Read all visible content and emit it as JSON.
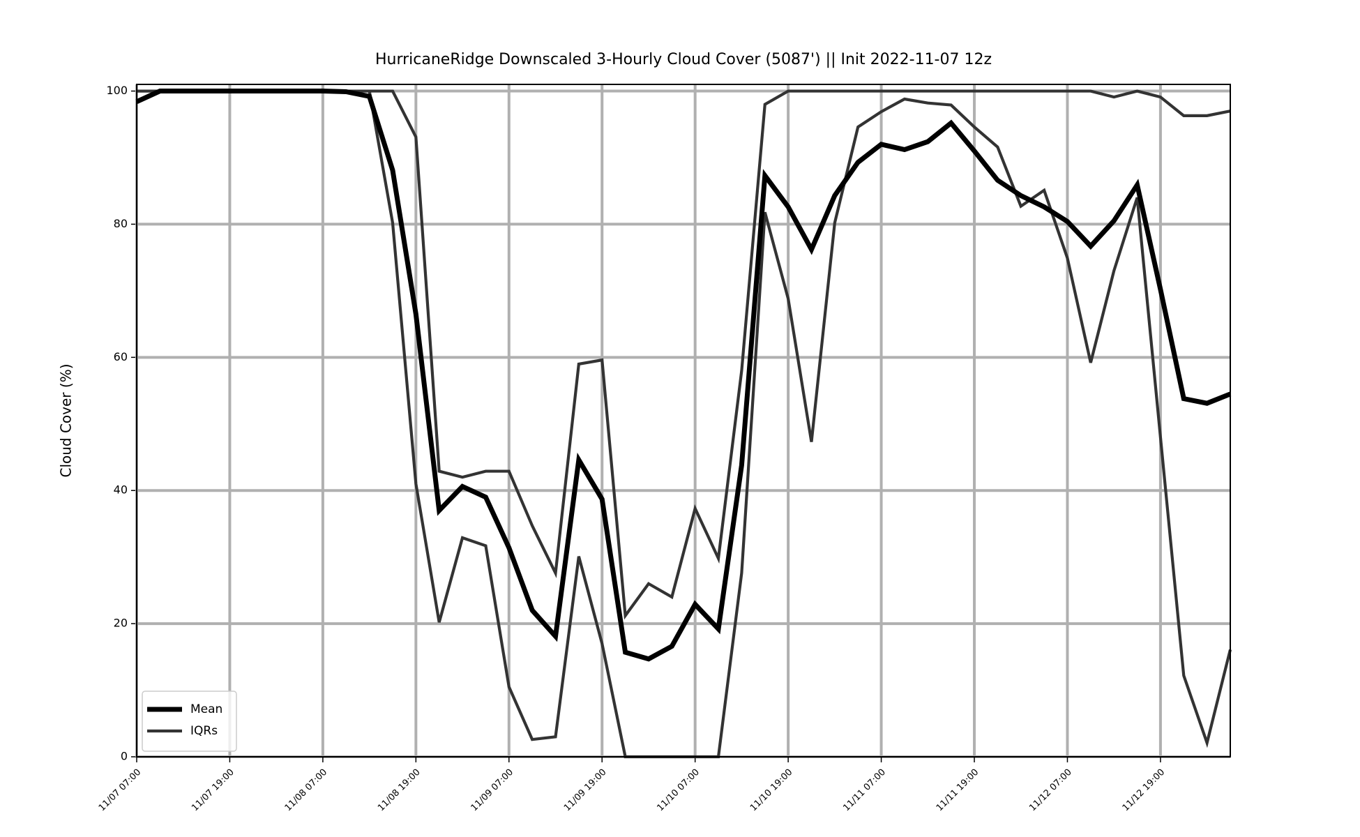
{
  "chart_data": {
    "type": "line",
    "title": "HurricaneRidge Downscaled 3-Hourly Cloud Cover (5087') || Init 2022-11-07 12z",
    "y_label": "Cloud Cover (%)",
    "categories": [
      "11/07 07:00",
      null,
      null,
      null,
      "11/07 19:00",
      null,
      null,
      null,
      "11/08 07:00",
      null,
      null,
      null,
      "11/08 19:00",
      null,
      null,
      null,
      "11/09 07:00",
      null,
      null,
      null,
      "11/09 19:00",
      null,
      null,
      null,
      "11/10 07:00",
      null,
      null,
      null,
      "11/10 19:00",
      null,
      null,
      null,
      "11/11 07:00",
      null,
      null,
      null,
      "11/11 19:00",
      null,
      null,
      null,
      "11/12 07:00",
      null,
      null,
      null,
      "11/12 19:00",
      null,
      null,
      null
    ],
    "series": [
      {
        "name": "Mean",
        "color": "#000000",
        "values": [
          98.4,
          100,
          100,
          100,
          100,
          100,
          100,
          100,
          100,
          99.9,
          99.2,
          88.1,
          66.5,
          37.0,
          40.6,
          39.0,
          31.4,
          22.0,
          18.1,
          44.6,
          38.7,
          15.7,
          14.7,
          16.6,
          22.9,
          19.2,
          43.8,
          87.3,
          82.6,
          76.2,
          84.3,
          89.3,
          92.0,
          91.2,
          92.4,
          95.2,
          91.0,
          86.6,
          84.3,
          82.6,
          80.4,
          76.7,
          80.5,
          85.9,
          70.2,
          53.8,
          53.1,
          54.5
        ]
      },
      {
        "name": "IQRs",
        "color": "#333333",
        "values": [
          100,
          100,
          100,
          100,
          100,
          100,
          100,
          100,
          100,
          100,
          100,
          100,
          93.1,
          42.9,
          42.0,
          42.9,
          42.9,
          34.7,
          27.6,
          59.0,
          59.6,
          21.2,
          26.0,
          24.0,
          37.3,
          29.8,
          58.0,
          98.0,
          100,
          100,
          100,
          100,
          100,
          100,
          100,
          100,
          100,
          100,
          100,
          100,
          100,
          100,
          99.1,
          100,
          99.1,
          96.3,
          96.3,
          97.0
        ]
      },
      {
        "color": "#333333",
        "values": [
          100,
          100,
          100,
          100,
          100,
          100,
          100,
          100,
          100,
          100,
          100,
          80.2,
          41.0,
          20.2,
          32.9,
          31.7,
          10.5,
          2.6,
          3.0,
          30.1,
          17.0,
          0,
          0,
          0,
          0,
          0,
          27.6,
          81.8,
          68.8,
          47.3,
          80.2,
          94.6,
          96.9,
          98.8,
          98.2,
          97.9,
          94.6,
          91.6,
          82.7,
          85.1,
          74.9,
          59.2,
          73.0,
          84.0,
          48.0,
          12.2,
          2.1,
          16.1
        ]
      }
    ],
    "ylim": [
      0,
      101
    ],
    "yticks": [
      0,
      20,
      40,
      60,
      80,
      100
    ],
    "grid": true,
    "legend": "lower left"
  }
}
